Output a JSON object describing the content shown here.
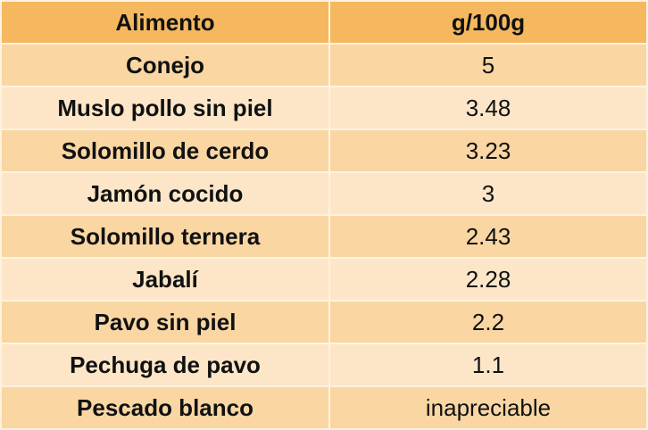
{
  "table": {
    "header": [
      "Alimento",
      "g/100g"
    ],
    "rows": [
      [
        "Conejo",
        "5"
      ],
      [
        "Muslo pollo sin piel",
        "3.48"
      ],
      [
        "Solomillo de cerdo",
        "3.23"
      ],
      [
        "Jamón cocido",
        "3"
      ],
      [
        "Solomillo ternera",
        "2.43"
      ],
      [
        "Jabalí",
        "2.28"
      ],
      [
        "Pavo sin piel",
        "2.2"
      ],
      [
        "Pechuga de pavo",
        "1.1"
      ],
      [
        "Pescado blanco",
        "inapreciable"
      ]
    ]
  }
}
